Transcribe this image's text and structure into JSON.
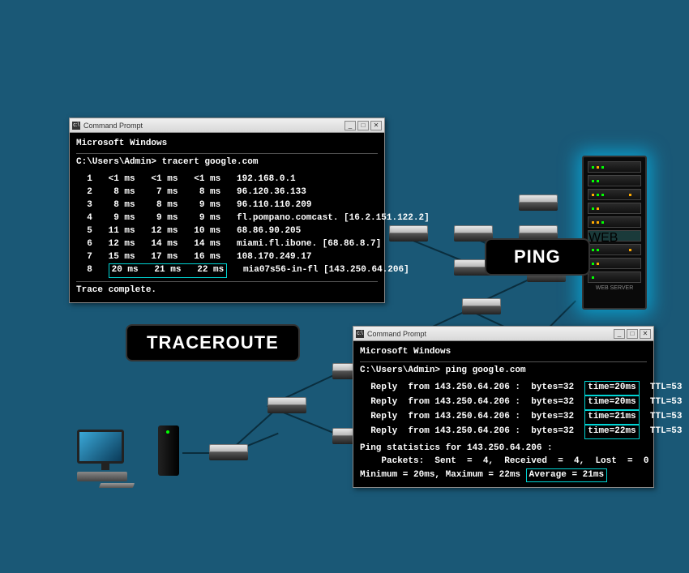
{
  "colors": {
    "background": "#1a5876",
    "terminal_bg": "#000000",
    "terminal_text": "#ffffff",
    "highlight_border": "#00d4d4",
    "titlebar_bg_top": "#f0f0f0",
    "titlebar_bg_bottom": "#d8d8d8",
    "server_glow": "rgba(0,200,255,0.6)",
    "line_color": "#0a2d3d"
  },
  "labels": {
    "traceroute": "TRACEROUTE",
    "ping": "PING"
  },
  "term1": {
    "title": "Command Prompt",
    "header": "Microsoft Windows",
    "prompt": "C:\\Users\\Admin> tracert  google.com",
    "rows": [
      {
        "n": "1",
        "a": "<1 ms",
        "b": "<1 ms",
        "c": "<1 ms",
        "host": "192.168.0.1"
      },
      {
        "n": "2",
        "a": "8 ms",
        "b": "7 ms",
        "c": "8 ms",
        "host": "96.120.36.133"
      },
      {
        "n": "3",
        "a": "8 ms",
        "b": "8 ms",
        "c": "9 ms",
        "host": "96.110.110.209"
      },
      {
        "n": "4",
        "a": "9 ms",
        "b": "9 ms",
        "c": "9 ms",
        "host": "fl.pompano.comcast. [16.2.151.122.2]"
      },
      {
        "n": "5",
        "a": "11 ms",
        "b": "12 ms",
        "c": "10 ms",
        "host": "68.86.90.205"
      },
      {
        "n": "6",
        "a": "12 ms",
        "b": "14 ms",
        "c": "14 ms",
        "host": "miami.fl.ibone. [68.86.8.7]"
      },
      {
        "n": "7",
        "a": "15 ms",
        "b": "17 ms",
        "c": "16 ms",
        "host": "108.170.249.17"
      },
      {
        "n": "8",
        "a": "20 ms",
        "b": "21 ms",
        "c": "22 ms",
        "host": "mia07s56-in-fl [143.250.64.206]"
      }
    ],
    "footer": "Trace complete."
  },
  "term2": {
    "title": "Command Prompt",
    "header": "Microsoft Windows",
    "prompt": "C:\\Users\\Admin> ping google.com",
    "replies": [
      {
        "from": "143.250.64.206",
        "bytes": "32",
        "time": "20ms",
        "ttl": "53"
      },
      {
        "from": "143.250.64.206",
        "bytes": "32",
        "time": "20ms",
        "ttl": "53"
      },
      {
        "from": "143.250.64.206",
        "bytes": "32",
        "time": "21ms",
        "ttl": "53"
      },
      {
        "from": "143.250.64.206",
        "bytes": "32",
        "time": "22ms",
        "ttl": "53"
      }
    ],
    "stats_header": "Ping statistics for 143.250.64.206 :",
    "packets": "    Packets:  Sent  =  4,  Received  =  4,  Lost  =  0",
    "minmax_prefix": "    Minimum = 20ms,  Maximum = 22ms ",
    "avg": "Average = 21ms"
  },
  "win_buttons": {
    "min": "_",
    "max": "□",
    "close": "✕"
  },
  "server_label": "WEB SERVER"
}
